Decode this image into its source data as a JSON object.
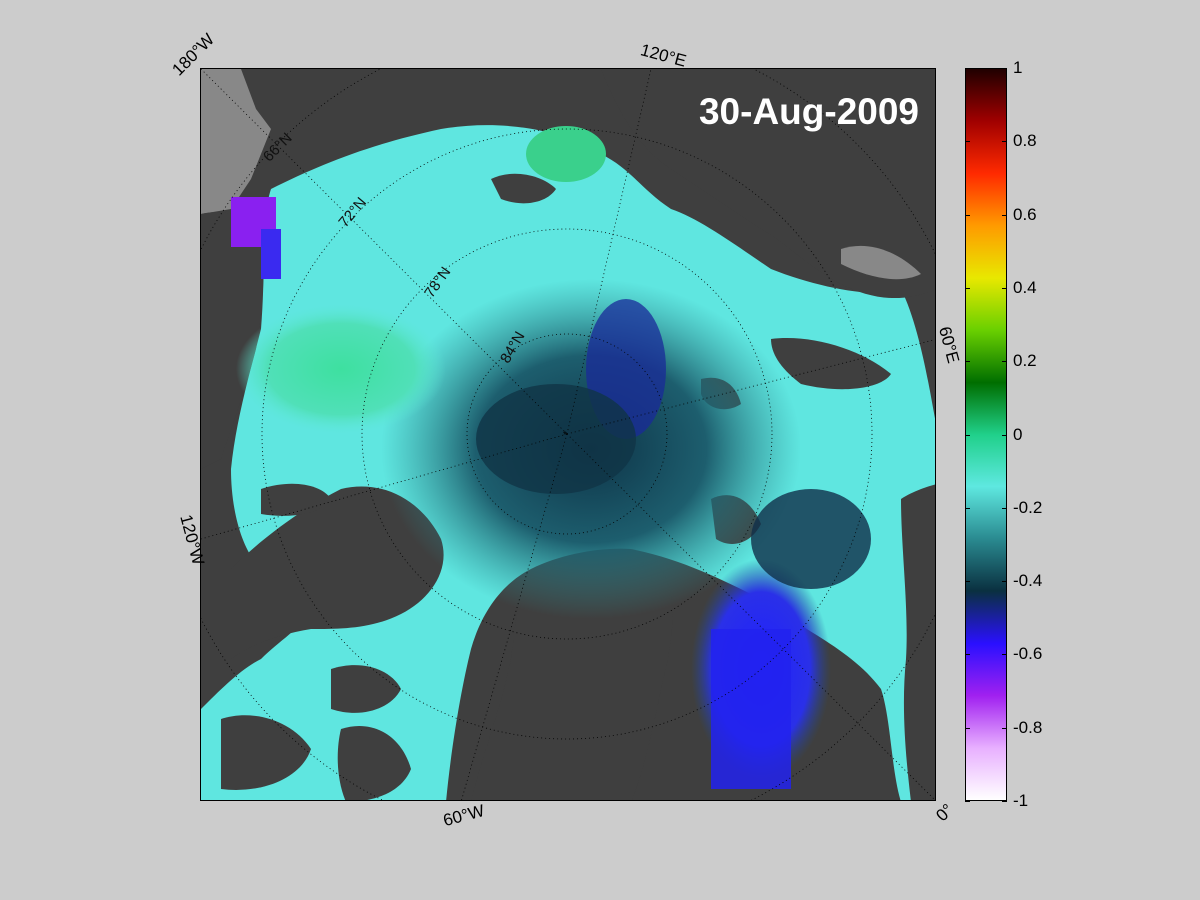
{
  "map": {
    "date_label": "30-Aug-2009",
    "longitude_labels": {
      "lon_180w": "180°W",
      "lon_120e": "120°E",
      "lon_60e": "60°E",
      "lon_0": "0°",
      "lon_60w": "60°W",
      "lon_120w": "120°W"
    },
    "latitude_labels": {
      "lat_66n": "66°N",
      "lat_72n": "72°N",
      "lat_78n": "78°N",
      "lat_84n": "84°N"
    },
    "land_color": "#3f3f3f",
    "missing_color": "#888888"
  },
  "colorbar": {
    "ticks": [
      "1",
      "0.8",
      "0.6",
      "0.4",
      "0.2",
      "0",
      "-0.2",
      "-0.4",
      "-0.6",
      "-0.8",
      "-1"
    ],
    "range": [
      -1,
      1
    ],
    "colors_top_to_bottom": [
      "#200000",
      "#a00000",
      "#ff2a00",
      "#ff9a00",
      "#e8e800",
      "#6ad000",
      "#006e00",
      "#20d08a",
      "#5ee8e0",
      "#2a8a90",
      "#0a3040",
      "#2a10ff",
      "#a020f0",
      "#e8b0ff",
      "#ffffff"
    ]
  }
}
